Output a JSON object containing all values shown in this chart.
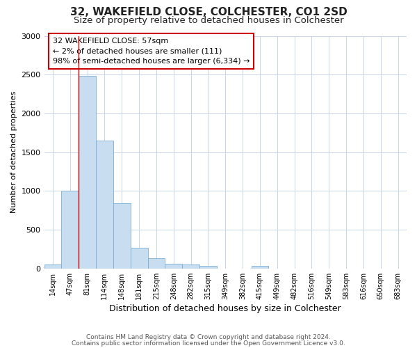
{
  "title1": "32, WAKEFIELD CLOSE, COLCHESTER, CO1 2SD",
  "title2": "Size of property relative to detached houses in Colchester",
  "xlabel": "Distribution of detached houses by size in Colchester",
  "ylabel": "Number of detached properties",
  "categories": [
    "14sqm",
    "47sqm",
    "81sqm",
    "114sqm",
    "148sqm",
    "181sqm",
    "215sqm",
    "248sqm",
    "282sqm",
    "315sqm",
    "349sqm",
    "382sqm",
    "415sqm",
    "449sqm",
    "482sqm",
    "516sqm",
    "549sqm",
    "583sqm",
    "616sqm",
    "650sqm",
    "683sqm"
  ],
  "values": [
    55,
    1000,
    2480,
    1650,
    840,
    270,
    130,
    60,
    55,
    35,
    2,
    2,
    30,
    0,
    0,
    0,
    0,
    0,
    0,
    0,
    0
  ],
  "bar_color": "#c9ddf0",
  "bar_edge_color": "#7bafd4",
  "vline_x": 1.5,
  "vline_color": "#cc0000",
  "annotation_line1": "32 WAKEFIELD CLOSE: 57sqm",
  "annotation_line2": "← 2% of detached houses are smaller (111)",
  "annotation_line3": "98% of semi-detached houses are larger (6,334) →",
  "annotation_box_color": "white",
  "annotation_box_edge_color": "#cc0000",
  "ylim": [
    0,
    3000
  ],
  "yticks": [
    0,
    500,
    1000,
    1500,
    2000,
    2500,
    3000
  ],
  "footnote1": "Contains HM Land Registry data © Crown copyright and database right 2024.",
  "footnote2": "Contains public sector information licensed under the Open Government Licence v3.0.",
  "background_color": "#ffffff",
  "grid_color": "#c8d4e8"
}
